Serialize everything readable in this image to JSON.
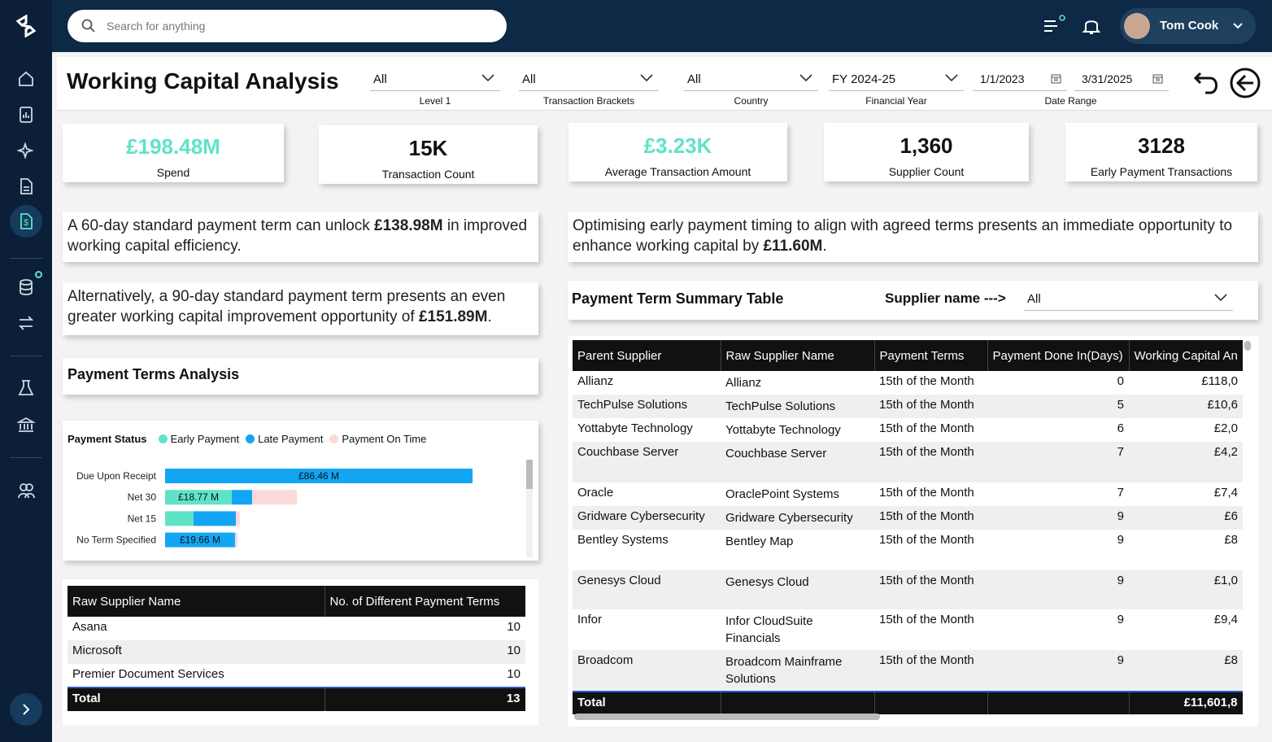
{
  "search": {
    "placeholder": "Search for anything"
  },
  "user": {
    "name": "Tom Cook"
  },
  "header": {
    "title": "Working Capital Analysis",
    "filters": [
      {
        "value": "All",
        "label": "Level 1"
      },
      {
        "value": "All",
        "label": "Transaction Brackets"
      },
      {
        "value": "All",
        "label": "Country"
      },
      {
        "value": "FY 2024-25",
        "label": "Financial Year"
      }
    ],
    "date_range": {
      "start": "1/1/2023",
      "end": "3/31/2025",
      "label": "Date Range"
    }
  },
  "kpis": [
    {
      "value": "£198.48M",
      "label": "Spend"
    },
    {
      "value": "15K",
      "label": "Transaction Count"
    },
    {
      "value": "£3.23K",
      "label": "Average Transaction Amount"
    },
    {
      "value": "1,360",
      "label": "Supplier Count"
    },
    {
      "value": "3128",
      "label": "Early Payment Transactions"
    }
  ],
  "insights": [
    [
      "A 60-day standard payment term can unlock ",
      "£138.98M",
      " in improved working capital efficiency."
    ],
    [
      "Optimising early payment timing to align with agreed terms presents an immediate opportunity to enhance working capital by ",
      "£11.60M",
      "."
    ],
    [
      "Alternatively, a 90-day standard payment term presents an even greater working capital improvement opportunity of ",
      "£151.89M",
      "."
    ]
  ],
  "payment_terms_analysis": {
    "title": "Payment Terms Analysis"
  },
  "chart_data": {
    "type": "stacked-hbar",
    "legend_title": "Payment Status",
    "categories": [
      "Due Upon Receipt",
      "Net 30",
      "Net 15",
      "No Term Specified"
    ],
    "series": [
      {
        "name": "Early Payment",
        "color": "#5ee3c8",
        "values": [
          0,
          18.77,
          8.0,
          0
        ],
        "value_labels": [
          null,
          "£18.77 M",
          null,
          null
        ]
      },
      {
        "name": "Late Payment",
        "color": "#12a5f4",
        "values": [
          86.46,
          5.7,
          11.9,
          19.66
        ],
        "value_labels": [
          "£86.46 M",
          null,
          null,
          "£19.66 M"
        ]
      },
      {
        "name": "Payment On Time",
        "color": "#fcd9d9",
        "values": [
          0,
          12.6,
          1.1,
          0.7
        ],
        "value_labels": [
          null,
          null,
          null,
          null
        ]
      }
    ]
  },
  "terms_table": {
    "columns": [
      "Raw Supplier Name",
      "No. of Different Payment Terms"
    ],
    "rows": [
      [
        "Asana",
        "10"
      ],
      [
        "Microsoft",
        "10"
      ],
      [
        "Premier Document Services",
        "10"
      ]
    ],
    "total": [
      "Total",
      "13"
    ]
  },
  "summary": {
    "title": "Payment Term Summary Table",
    "filter_label": "Supplier name --->",
    "filter_value": "All",
    "columns": [
      "Parent Supplier",
      "Raw Supplier Name",
      "Payment Terms",
      "Payment Done In(Days)",
      "Working Capital An"
    ],
    "rows": [
      [
        "Allianz",
        "Allianz",
        "15th of the Month",
        "0",
        "£118,0"
      ],
      [
        "TechPulse Solutions",
        "TechPulse Solutions",
        "15th of the Month",
        "5",
        "£10,6"
      ],
      [
        "Yottabyte Technology",
        "Yottabyte Technology",
        "15th of the Month",
        "6",
        "£2,0"
      ],
      [
        "Couchbase Server",
        "Couchbase Server",
        "15th of the Month",
        "7",
        "£4,2"
      ],
      [
        "Oracle",
        "OraclePoint Systems",
        "15th of the Month",
        "7",
        "£7,4"
      ],
      [
        "Gridware Cybersecurity",
        "Gridware Cybersecurity",
        "15th of the Month",
        "9",
        "£6"
      ],
      [
        "Bentley Systems",
        "Bentley Map",
        "15th of the Month",
        "9",
        "£8"
      ],
      [
        "Genesys Cloud",
        "Genesys Cloud",
        "15th of the Month",
        "9",
        "£1,0"
      ],
      [
        "Infor",
        "Infor CloudSuite Financials",
        "15th of the Month",
        "9",
        "£9,4"
      ],
      [
        "Broadcom",
        "Broadcom Mainframe Solutions",
        "15th of the Month",
        "9",
        "£8"
      ]
    ],
    "total": [
      "Total",
      "",
      "",
      "",
      "£11,601,8"
    ]
  }
}
